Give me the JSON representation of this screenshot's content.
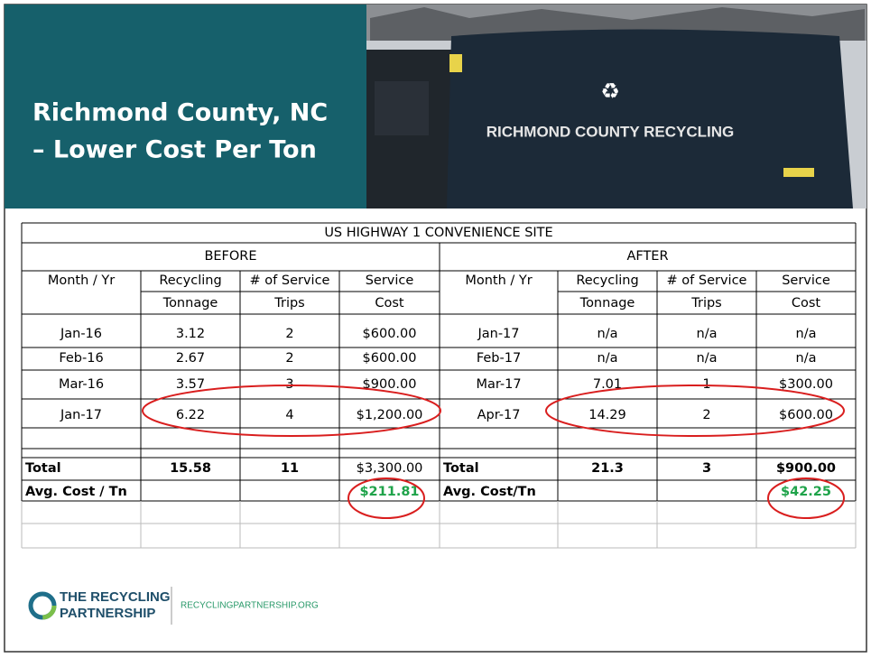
{
  "slide": {
    "title_lines": [
      "Richmond County, NC",
      "– Lower Cost Per Ton"
    ],
    "photo_sign": "RICHMOND COUNTY RECYCLING"
  },
  "table": {
    "title": "US HIGHWAY 1 CONVENIENCE SITE",
    "groups": [
      "BEFORE",
      "AFTER"
    ],
    "header": [
      [
        "Month / Yr"
      ],
      [
        "Recycling",
        "Tonnage"
      ],
      [
        "# of Service",
        "Trips"
      ],
      [
        "Service",
        "Cost"
      ],
      [
        "Month / Yr"
      ],
      [
        "Recycling",
        "Tonnage"
      ],
      [
        "# of Service",
        "Trips"
      ],
      [
        "Service",
        "Cost"
      ]
    ],
    "rows": [
      [
        "Jan-16",
        "3.12",
        "2",
        "$600.00",
        "Jan-17",
        "n/a",
        "n/a",
        "n/a"
      ],
      [
        "Feb-16",
        "2.67",
        "2",
        "$600.00",
        "Feb-17",
        "n/a",
        "n/a",
        "n/a"
      ],
      [
        "Mar-16",
        "3.57",
        "3",
        "$900.00",
        "Mar-17",
        "7.01",
        "1",
        "$300.00"
      ],
      [
        "Jan-17",
        "6.22",
        "4",
        "$1,200.00",
        "Apr-17",
        "14.29",
        "2",
        "$600.00"
      ]
    ],
    "total": [
      "Total",
      "15.58",
      "11",
      "$3,300.00",
      "Total",
      "21.3",
      "3",
      "$900.00"
    ],
    "avg": {
      "before_label": "Avg. Cost / Tn",
      "before_value": "$211.81",
      "after_label": "Avg. Cost/Tn",
      "after_value": "$42.25"
    }
  },
  "footer": {
    "logo": [
      "THE RECYCLING",
      "PARTNERSHIP"
    ],
    "url": "RECYCLINGPARTNERSHIP.ORG"
  }
}
